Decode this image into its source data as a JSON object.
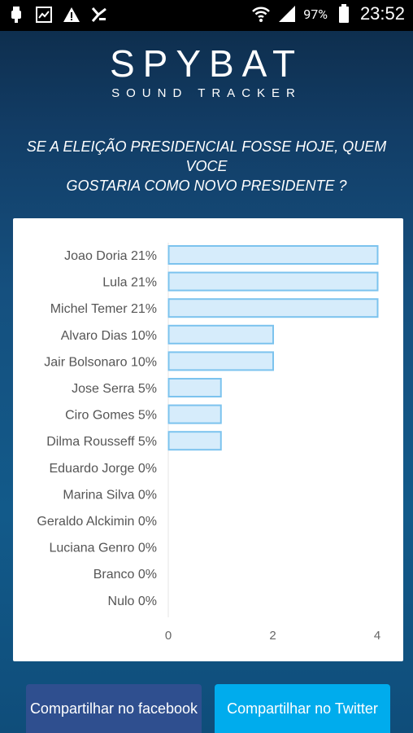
{
  "statusbar": {
    "battery_pct": "97%",
    "clock": "23:52"
  },
  "brand": {
    "title": "SPYBAT",
    "subtitle": "SOUND TRACKER"
  },
  "question": {
    "line1": "SE A ELEIÇÃO PRESIDENCIAL FOSSE HOJE, QUEM VOCE",
    "line2": "GOSTARIA COMO NOVO PRESIDENTE ?"
  },
  "chart_data": {
    "type": "bar",
    "orientation": "horizontal",
    "categories": [
      "Joao Doria 21%",
      "Lula 21%",
      "Michel Temer 21%",
      "Alvaro Dias 10%",
      "Jair Bolsonaro 10%",
      "Jose Serra 5%",
      "Ciro Gomes 5%",
      "Dilma Rousseff 5%",
      "Eduardo Jorge 0%",
      "Marina Silva 0%",
      "Geraldo Alckimin 0%",
      "Luciana Genro 0%",
      "Branco 0%",
      "Nulo 0%"
    ],
    "values": [
      4,
      4,
      4,
      2,
      2,
      1,
      1,
      1,
      0,
      0,
      0,
      0,
      0,
      0
    ],
    "xlim": [
      0,
      4
    ],
    "xticks": [
      "0",
      "2",
      "4"
    ],
    "grid": false,
    "bar_fill": "#d6ecfb",
    "bar_stroke": "#7cc3ee"
  },
  "buttons": {
    "facebook": "Compartilhar no facebook",
    "twitter": "Compartilhar no Twitter"
  }
}
